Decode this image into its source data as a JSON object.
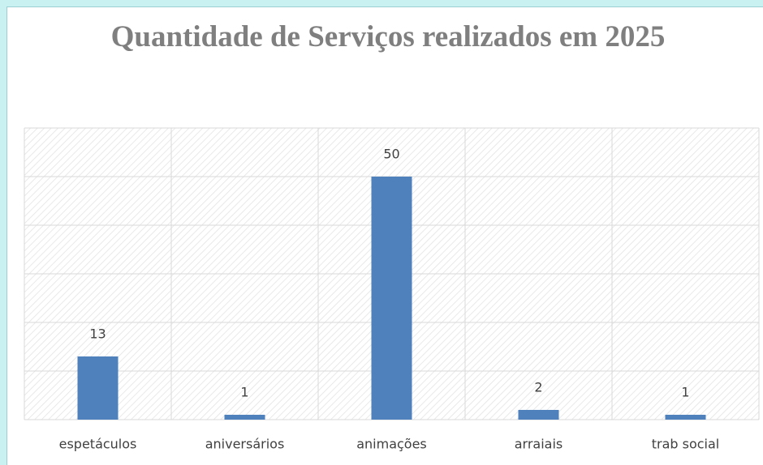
{
  "chart_data": {
    "type": "bar",
    "title": "Quantidade de Serviços realizados em 2025",
    "categories": [
      "espetáculos",
      "aniversários",
      "animações",
      "arraiais",
      "trab social"
    ],
    "values": [
      13,
      1,
      50,
      2,
      1
    ],
    "color": "#4f81bd",
    "ylim": [
      0,
      60
    ],
    "yticks": [
      0,
      10,
      20,
      30,
      40,
      50,
      60
    ],
    "grid": true
  }
}
